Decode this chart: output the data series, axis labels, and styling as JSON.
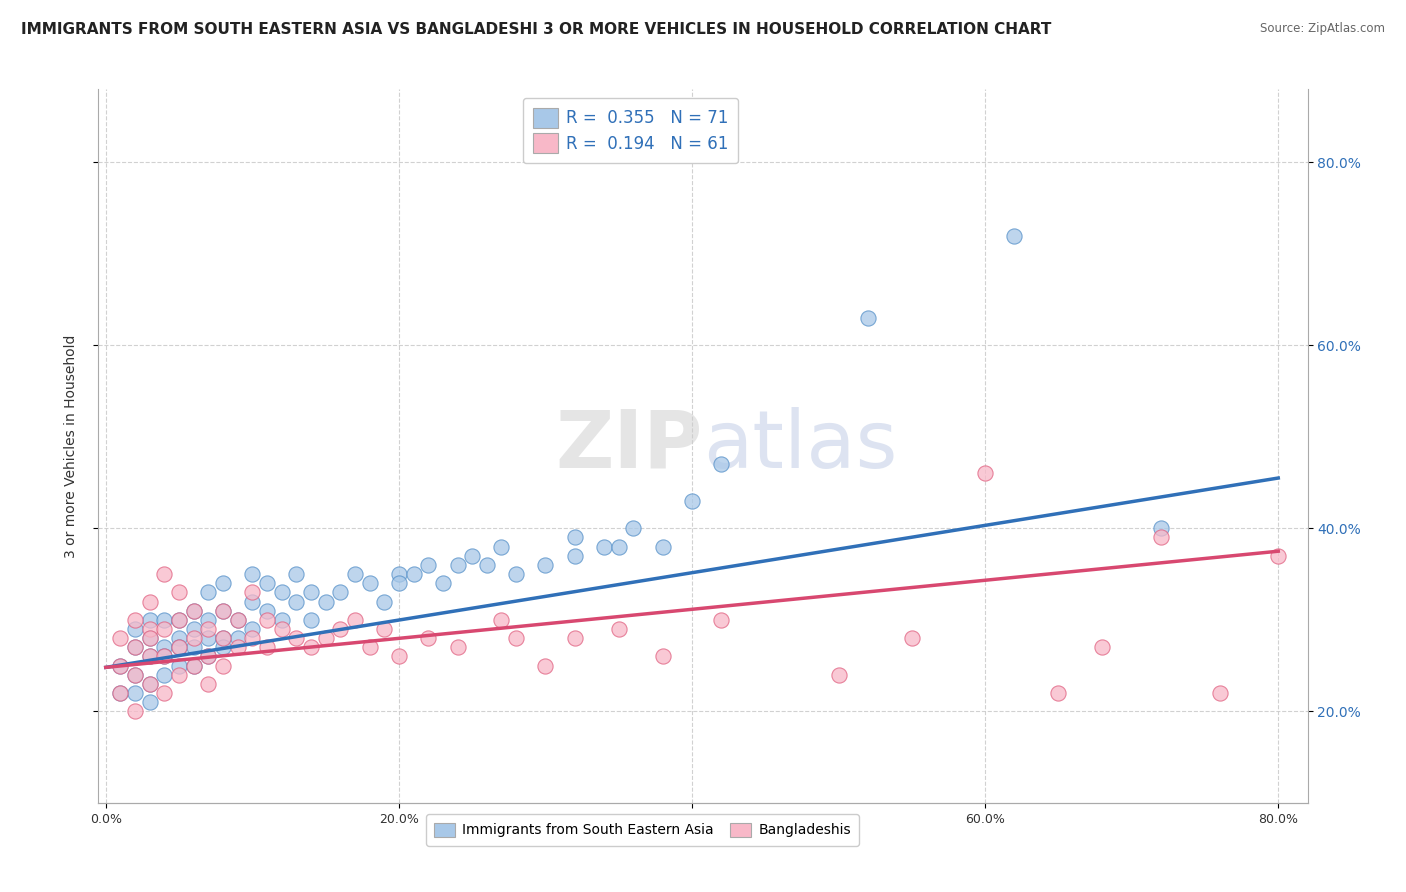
{
  "title": "IMMIGRANTS FROM SOUTH EASTERN ASIA VS BANGLADESHI 3 OR MORE VEHICLES IN HOUSEHOLD CORRELATION CHART",
  "source": "Source: ZipAtlas.com",
  "ylabel": "3 or more Vehicles in Household",
  "xlim": [
    -0.005,
    0.82
  ],
  "ylim": [
    0.1,
    0.88
  ],
  "xtick_labels": [
    "0.0%",
    "20.0%",
    "40.0%",
    "60.0%",
    "80.0%"
  ],
  "xtick_vals": [
    0.0,
    0.2,
    0.4,
    0.6,
    0.8
  ],
  "ytick_labels": [
    "20.0%",
    "40.0%",
    "60.0%",
    "80.0%"
  ],
  "ytick_vals": [
    0.2,
    0.4,
    0.6,
    0.8
  ],
  "right_ytick_labels": [
    "20.0%",
    "40.0%",
    "60.0%",
    "80.0%"
  ],
  "right_ytick_vals": [
    0.2,
    0.4,
    0.6,
    0.8
  ],
  "blue_color": "#a8c8e8",
  "blue_edge_color": "#5590c8",
  "pink_color": "#f8b8c8",
  "pink_edge_color": "#e06080",
  "blue_line_color": "#3070b8",
  "pink_line_color": "#d84870",
  "legend_blue_R": "0.355",
  "legend_blue_N": "71",
  "legend_pink_R": "0.194",
  "legend_pink_N": "61",
  "legend_label_blue": "Immigrants from South Eastern Asia",
  "legend_label_pink": "Bangladeshis",
  "watermark": "ZIPatlas",
  "blue_scatter_x": [
    0.01,
    0.01,
    0.02,
    0.02,
    0.02,
    0.02,
    0.03,
    0.03,
    0.03,
    0.03,
    0.03,
    0.04,
    0.04,
    0.04,
    0.04,
    0.05,
    0.05,
    0.05,
    0.05,
    0.06,
    0.06,
    0.06,
    0.06,
    0.07,
    0.07,
    0.07,
    0.07,
    0.08,
    0.08,
    0.08,
    0.08,
    0.09,
    0.09,
    0.1,
    0.1,
    0.1,
    0.11,
    0.11,
    0.12,
    0.12,
    0.13,
    0.13,
    0.14,
    0.14,
    0.15,
    0.16,
    0.17,
    0.18,
    0.19,
    0.2,
    0.2,
    0.21,
    0.22,
    0.23,
    0.24,
    0.25,
    0.26,
    0.27,
    0.28,
    0.3,
    0.32,
    0.32,
    0.34,
    0.35,
    0.36,
    0.38,
    0.4,
    0.42,
    0.52,
    0.62,
    0.72
  ],
  "blue_scatter_y": [
    0.25,
    0.22,
    0.24,
    0.27,
    0.29,
    0.22,
    0.26,
    0.28,
    0.3,
    0.23,
    0.21,
    0.27,
    0.3,
    0.24,
    0.26,
    0.28,
    0.25,
    0.27,
    0.3,
    0.27,
    0.29,
    0.31,
    0.25,
    0.28,
    0.3,
    0.33,
    0.26,
    0.28,
    0.31,
    0.34,
    0.27,
    0.3,
    0.28,
    0.29,
    0.32,
    0.35,
    0.31,
    0.34,
    0.3,
    0.33,
    0.32,
    0.35,
    0.3,
    0.33,
    0.32,
    0.33,
    0.35,
    0.34,
    0.32,
    0.35,
    0.34,
    0.35,
    0.36,
    0.34,
    0.36,
    0.37,
    0.36,
    0.38,
    0.35,
    0.36,
    0.37,
    0.39,
    0.38,
    0.38,
    0.4,
    0.38,
    0.43,
    0.47,
    0.63,
    0.72,
    0.4
  ],
  "pink_scatter_x": [
    0.01,
    0.01,
    0.01,
    0.02,
    0.02,
    0.02,
    0.02,
    0.03,
    0.03,
    0.03,
    0.03,
    0.03,
    0.04,
    0.04,
    0.04,
    0.04,
    0.05,
    0.05,
    0.05,
    0.05,
    0.06,
    0.06,
    0.06,
    0.07,
    0.07,
    0.07,
    0.08,
    0.08,
    0.08,
    0.09,
    0.09,
    0.1,
    0.1,
    0.11,
    0.11,
    0.12,
    0.13,
    0.14,
    0.15,
    0.16,
    0.17,
    0.18,
    0.19,
    0.2,
    0.22,
    0.24,
    0.27,
    0.28,
    0.3,
    0.32,
    0.35,
    0.38,
    0.42,
    0.5,
    0.55,
    0.6,
    0.65,
    0.68,
    0.72,
    0.76,
    0.8
  ],
  "pink_scatter_y": [
    0.28,
    0.25,
    0.22,
    0.3,
    0.27,
    0.24,
    0.2,
    0.29,
    0.26,
    0.23,
    0.28,
    0.32,
    0.26,
    0.29,
    0.35,
    0.22,
    0.27,
    0.3,
    0.24,
    0.33,
    0.25,
    0.28,
    0.31,
    0.26,
    0.29,
    0.23,
    0.28,
    0.31,
    0.25,
    0.27,
    0.3,
    0.28,
    0.33,
    0.27,
    0.3,
    0.29,
    0.28,
    0.27,
    0.28,
    0.29,
    0.3,
    0.27,
    0.29,
    0.26,
    0.28,
    0.27,
    0.3,
    0.28,
    0.25,
    0.28,
    0.29,
    0.26,
    0.3,
    0.24,
    0.28,
    0.46,
    0.22,
    0.27,
    0.39,
    0.22,
    0.37
  ],
  "blue_trendline_x": [
    0.0,
    0.8
  ],
  "blue_trendline_y": [
    0.248,
    0.455
  ],
  "pink_trendline_x": [
    0.0,
    0.8
  ],
  "pink_trendline_y": [
    0.248,
    0.375
  ],
  "background_color": "#ffffff",
  "grid_color": "#cccccc",
  "title_fontsize": 11,
  "axis_fontsize": 10,
  "tick_fontsize": 9,
  "scatter_size": 120
}
